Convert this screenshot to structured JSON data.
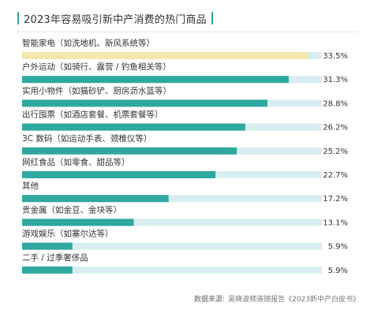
{
  "title": "2023年容易吸引新中产消费的热门商品",
  "colors": {
    "accent": "#2fa8a0",
    "highlight": "#f5e6ae",
    "track": "#d8eeee",
    "text": "#333333",
    "source_text": "#777777"
  },
  "source": {
    "label": "数据来源:",
    "text": "吴晓波频道随报告《2023新中产白皮书》"
  },
  "chart_data": {
    "type": "bar",
    "orientation": "horizontal",
    "title": "2023年容易吸引新中产消费的热门商品",
    "categories": [
      "智能家电（如洗地机、新风系统等）",
      "户外运动（如骑行、露营 / 钓鱼相关等）",
      "实用小物件（如猫砂铲、厨房沥水篮等）",
      "出行囤票（如酒店套餐、机票套餐等）",
      "3C 数码（如运动手表、颈椎仪等）",
      "网红食品（如零食、甜品等）",
      "其他",
      "贵金属（如金豆、金块等）",
      "游戏娱乐（如塞尔达等）",
      "二手 / 过季奢侈品"
    ],
    "values": [
      33.5,
      31.3,
      28.8,
      26.2,
      25.2,
      22.7,
      17.2,
      13.1,
      5.9,
      5.9
    ],
    "value_labels": [
      "33.5%",
      "31.3%",
      "28.8%",
      "26.2%",
      "25.2%",
      "22.7%",
      "17.2%",
      "13.1%",
      "5.9%",
      "5.9%"
    ],
    "highlight_index": 0,
    "xlim": [
      0,
      35.2
    ],
    "grid": false,
    "legend": "none"
  }
}
